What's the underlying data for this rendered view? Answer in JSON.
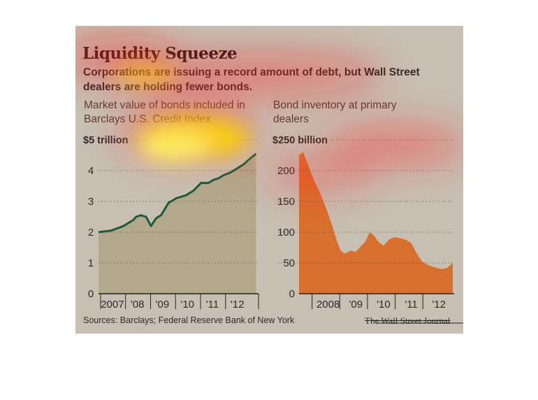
{
  "title": "Liquidity Squeeze",
  "subtitle": "Corporations are issuing a record amount of debt, but Wall Street dealers are holding fewer bonds.",
  "source": "Sources: Barclays; Federal Reserve Bank of New York",
  "brand": "The Wall Street Journal",
  "colors": {
    "background": "#c7bfb2",
    "left_fill": "#b3a88a",
    "left_line": "#1e5a3c",
    "right_fill": "#d7702e"
  },
  "chart_data": [
    {
      "type": "area",
      "title": "Market value of bonds included in Barclays U.S. Credit Index",
      "unit_label": "$5 trillion",
      "ylim": [
        0,
        5
      ],
      "y_ticks": [
        "0",
        "1",
        "2",
        "3",
        "4"
      ],
      "x_ticks": [
        "2007",
        "'08",
        "'09",
        "'10",
        "'11",
        "'12"
      ],
      "grid": "dotted horizontal",
      "x": [
        2006.5,
        2007.0,
        2007.5,
        2007.9,
        2008.0,
        2008.2,
        2008.4,
        2008.6,
        2008.8,
        2009.0,
        2009.3,
        2009.6,
        2009.8,
        2010.0,
        2010.3,
        2010.6,
        2010.9,
        2011.1,
        2011.3,
        2011.5,
        2011.8,
        2012.0,
        2012.3,
        2012.5,
        2012.8
      ],
      "values": [
        2.0,
        2.05,
        2.2,
        2.4,
        2.5,
        2.55,
        2.5,
        2.2,
        2.45,
        2.55,
        2.95,
        3.1,
        3.15,
        3.2,
        3.35,
        3.6,
        3.6,
        3.7,
        3.75,
        3.85,
        3.95,
        4.05,
        4.2,
        4.35,
        4.55
      ]
    },
    {
      "type": "area",
      "title": "Bond inventory at primary dealers",
      "unit_label": "$250 billion",
      "ylim": [
        0,
        250
      ],
      "y_ticks": [
        "0",
        "50",
        "100",
        "150",
        "200"
      ],
      "x_ticks": [
        "2008",
        "'09",
        "'10",
        "'11",
        "'12"
      ],
      "grid": "dotted horizontal",
      "x": [
        2007.25,
        2007.4,
        2007.55,
        2007.7,
        2007.85,
        2008.0,
        2008.15,
        2008.3,
        2008.45,
        2008.6,
        2008.75,
        2008.9,
        2009.1,
        2009.3,
        2009.5,
        2009.65,
        2009.8,
        2009.95,
        2010.1,
        2010.3,
        2010.5,
        2010.7,
        2010.9,
        2011.1,
        2011.3,
        2011.5,
        2011.7,
        2011.85,
        2012.0,
        2012.2,
        2012.4,
        2012.6,
        2012.8
      ],
      "values": [
        225,
        230,
        212,
        195,
        178,
        165,
        148,
        130,
        110,
        88,
        70,
        65,
        70,
        68,
        78,
        85,
        100,
        95,
        85,
        78,
        88,
        92,
        90,
        88,
        82,
        65,
        52,
        48,
        45,
        42,
        40,
        42,
        50
      ]
    }
  ]
}
